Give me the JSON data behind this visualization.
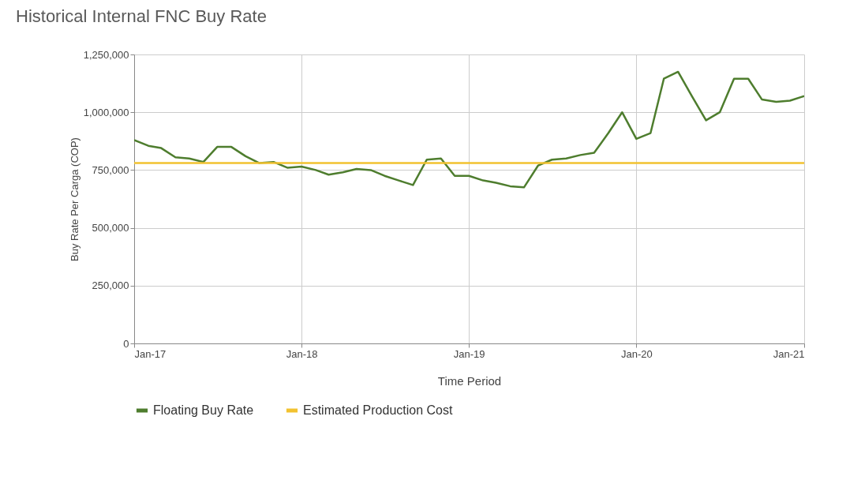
{
  "chart_data": {
    "type": "line",
    "title": "Historical Internal FNC Buy Rate",
    "xlabel": "Time Period",
    "ylabel": "Buy Rate Per Carga (COP)",
    "x": [
      "2017-01",
      "2017-02",
      "2017-03",
      "2017-04",
      "2017-05",
      "2017-06",
      "2017-07",
      "2017-08",
      "2017-09",
      "2017-10",
      "2017-11",
      "2017-12",
      "2018-01",
      "2018-02",
      "2018-03",
      "2018-04",
      "2018-05",
      "2018-06",
      "2018-07",
      "2018-08",
      "2018-09",
      "2018-10",
      "2018-11",
      "2018-12",
      "2019-01",
      "2019-02",
      "2019-03",
      "2019-04",
      "2019-05",
      "2019-06",
      "2019-07",
      "2019-08",
      "2019-09",
      "2019-10",
      "2019-11",
      "2019-12",
      "2020-01",
      "2020-02",
      "2020-03",
      "2020-04",
      "2020-05",
      "2020-06",
      "2020-07",
      "2020-08",
      "2020-09",
      "2020-10",
      "2020-11",
      "2020-12",
      "2021-01"
    ],
    "series": [
      {
        "name": "Floating Buy Rate",
        "color": "#4e7d2e",
        "values": [
          880000,
          855000,
          845000,
          805000,
          800000,
          785000,
          850000,
          850000,
          810000,
          780000,
          785000,
          760000,
          765000,
          750000,
          730000,
          740000,
          755000,
          750000,
          725000,
          705000,
          685000,
          795000,
          800000,
          725000,
          725000,
          705000,
          695000,
          680000,
          675000,
          770000,
          795000,
          800000,
          815000,
          825000,
          910000,
          1000000,
          885000,
          910000,
          1145000,
          1175000,
          1070000,
          965000,
          1000000,
          1145000,
          1145000,
          1055000,
          1045000,
          1050000,
          1070000
        ]
      },
      {
        "name": "Estimated Production Cost",
        "color": "#f2c230",
        "x": [
          "2017-01",
          "2021-01"
        ],
        "values": [
          780000,
          780000
        ]
      }
    ],
    "xlim": [
      "2017-01",
      "2021-01"
    ],
    "xticks": [
      {
        "value": "2017-01",
        "label": "Jan-17"
      },
      {
        "value": "2018-01",
        "label": "Jan-18"
      },
      {
        "value": "2019-01",
        "label": "Jan-19"
      },
      {
        "value": "2020-01",
        "label": "Jan-20"
      },
      {
        "value": "2021-01",
        "label": "Jan-21"
      }
    ],
    "ylim": [
      0,
      1250000
    ],
    "yticks": [
      {
        "value": 0,
        "label": "0"
      },
      {
        "value": 250000,
        "label": "250,000"
      },
      {
        "value": 500000,
        "label": "500,000"
      },
      {
        "value": 750000,
        "label": "750,000"
      },
      {
        "value": 1000000,
        "label": "1,000,000"
      },
      {
        "value": 1250000,
        "label": "1,250,000"
      }
    ],
    "grid": true,
    "legend": "bottom",
    "marker": "none",
    "line_style": "solid"
  }
}
